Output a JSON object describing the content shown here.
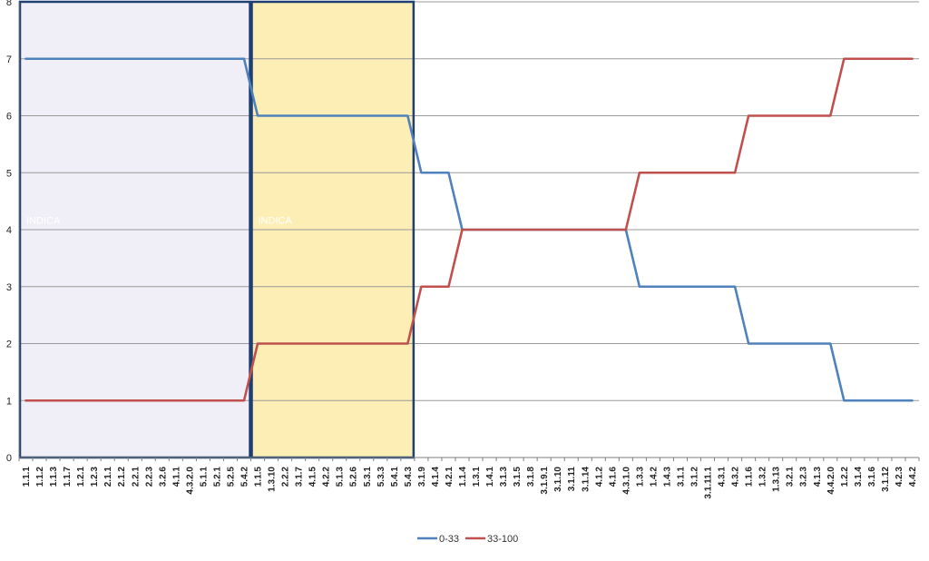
{
  "chart_data": {
    "type": "line",
    "title": "",
    "xlabel": "",
    "ylabel": "",
    "ylim": [
      0,
      8
    ],
    "yticks": [
      "0",
      "1",
      "2",
      "3",
      "4",
      "5",
      "6",
      "7",
      "8"
    ],
    "grid": true,
    "legend_position": "bottom",
    "categories": [
      "1.1.1",
      "1.1.2",
      "1.1.3",
      "1.1.7",
      "1.2.1",
      "1.2.3",
      "2.1.1",
      "2.1.2",
      "2.2.1",
      "2.2.3",
      "3.2.6",
      "4.1.1",
      "4.3.2.0",
      "5.1.1",
      "5.2.1",
      "5.2.5",
      "5.4.2",
      "1.1.5",
      "1.3.10",
      "2.2.2",
      "3.1.7",
      "4.1.5",
      "4.2.2",
      "5.1.3",
      "5.2.6",
      "5.3.1",
      "5.3.3",
      "5.4.1",
      "5.4.3",
      "3.1.9",
      "4.1.4",
      "4.2.1",
      "1.1.4",
      "1.3.1",
      "1.4.1",
      "3.1.3",
      "3.1.5",
      "3.1.8",
      "3.1.9.1",
      "3.1.10",
      "3.1.11",
      "3.1.14",
      "4.1.2",
      "4.1.6",
      "4.3.1.0",
      "1.3.3",
      "1.4.2",
      "1.4.3",
      "3.1.1",
      "3.1.2",
      "3.1.11.1",
      "4.3.1",
      "4.3.2",
      "1.1.6",
      "1.3.2",
      "1.3.13",
      "3.2.1",
      "3.2.3",
      "4.1.3",
      "4.4.2.0",
      "1.2.2",
      "3.1.4",
      "3.1.6",
      "3.1.12",
      "4.2.3",
      "4.4.2"
    ],
    "series": [
      {
        "name": "0-33",
        "color": "#4f81bd",
        "values": [
          7,
          7,
          7,
          7,
          7,
          7,
          7,
          7,
          7,
          7,
          7,
          7,
          7,
          7,
          7,
          7,
          7,
          6,
          6,
          6,
          6,
          6,
          6,
          6,
          6,
          6,
          6,
          6,
          6,
          5,
          5,
          5,
          4,
          4,
          4,
          4,
          4,
          4,
          4,
          4,
          4,
          4,
          4,
          4,
          4,
          3,
          3,
          3,
          3,
          3,
          3,
          3,
          3,
          2,
          2,
          2,
          2,
          2,
          2,
          2,
          1,
          1,
          1,
          1,
          1,
          1
        ]
      },
      {
        "name": "33-100",
        "color": "#c0504d",
        "values": [
          1,
          1,
          1,
          1,
          1,
          1,
          1,
          1,
          1,
          1,
          1,
          1,
          1,
          1,
          1,
          1,
          1,
          2,
          2,
          2,
          2,
          2,
          2,
          2,
          2,
          2,
          2,
          2,
          2,
          3,
          3,
          3,
          4,
          4,
          4,
          4,
          4,
          4,
          4,
          4,
          4,
          4,
          4,
          4,
          4,
          5,
          5,
          5,
          5,
          5,
          5,
          5,
          5,
          6,
          6,
          6,
          6,
          6,
          6,
          6,
          7,
          7,
          7,
          7,
          7,
          7
        ]
      }
    ],
    "highlight_regions": [
      {
        "label": "INDICA",
        "from": "1.1.1",
        "to": "5.4.2",
        "fill": "#f0eef7",
        "stroke": "#1f3f72"
      },
      {
        "label": "INDICA",
        "from": "1.1.5",
        "to": "5.4.3",
        "fill": "#fdeeb5",
        "stroke": "#1f3f72"
      }
    ]
  }
}
